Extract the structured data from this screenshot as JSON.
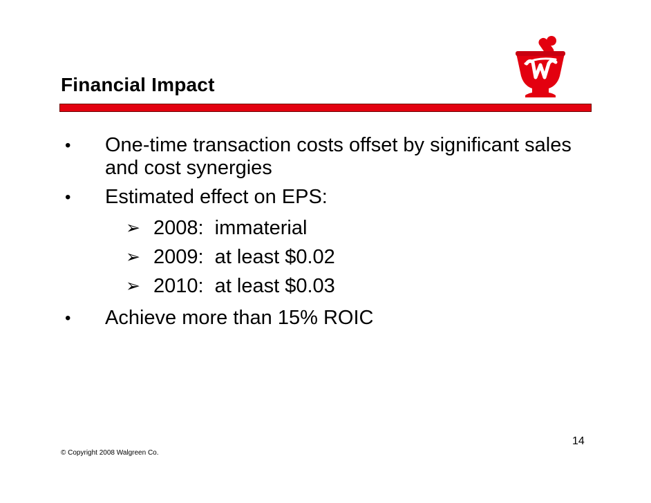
{
  "slide": {
    "title": "Financial Impact",
    "bullets": [
      {
        "marker": "•",
        "text": "One-time transaction costs offset by significant sales and cost synergies"
      },
      {
        "marker": "•",
        "text": "Estimated effect on EPS:"
      },
      {
        "marker": "•",
        "text": "Achieve more than 15% ROIC"
      }
    ],
    "sub_bullets": [
      {
        "marker": "➢",
        "text": "2008:  immaterial"
      },
      {
        "marker": "➢",
        "text": "2009:  at least $0.02"
      },
      {
        "marker": "➢",
        "text": "2010:  at least $0.03"
      }
    ],
    "page_number": "14",
    "copyright": "© Copyright 2008 Walgreen Co."
  },
  "colors": {
    "brand_red": "#e3000f",
    "rule_border": "#6b0000"
  },
  "icons": {
    "logo": "walgreens-mortar-pestle-logo"
  }
}
